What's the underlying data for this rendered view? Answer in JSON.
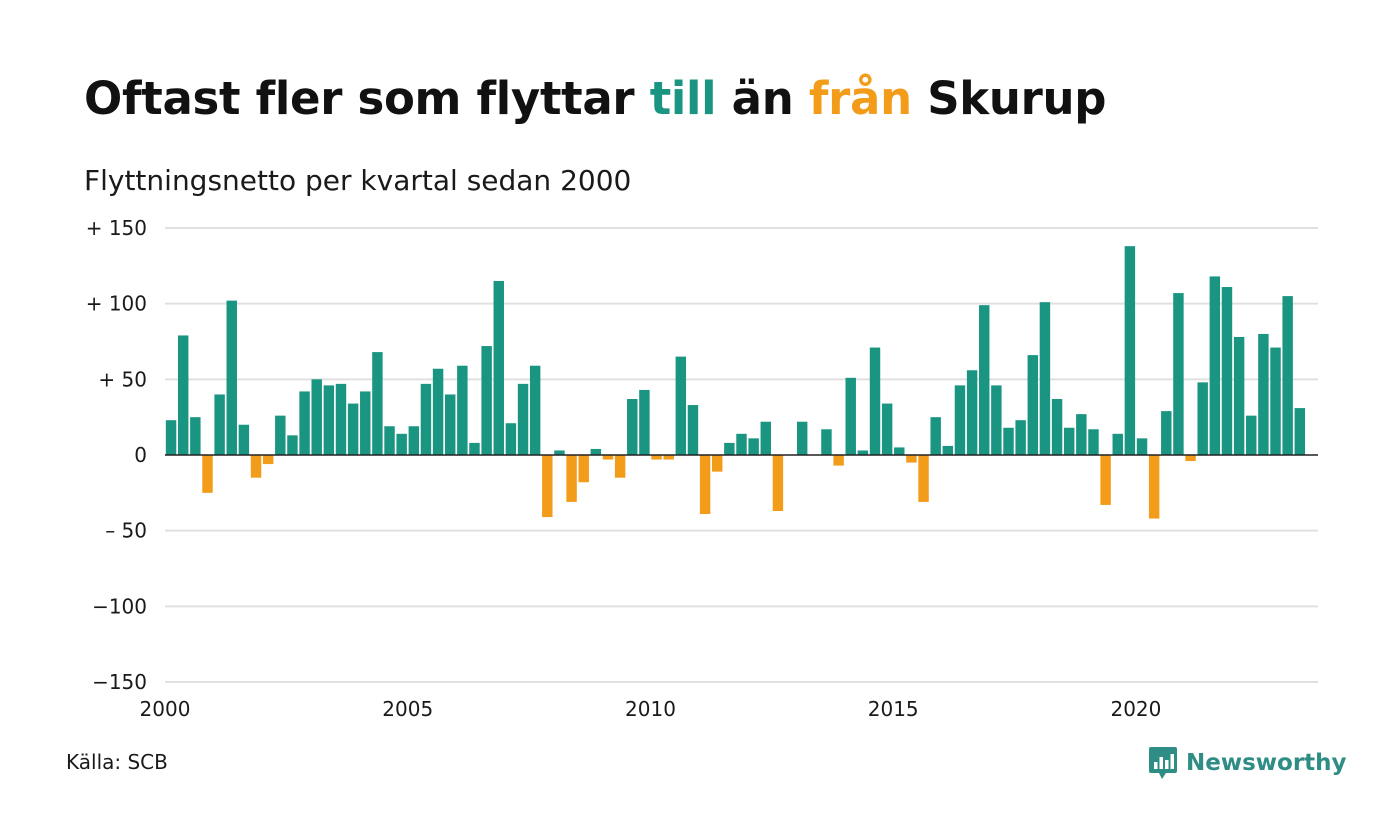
{
  "title": {
    "part1": "Oftast fler som flyttar ",
    "part2": "till",
    "part3": " än ",
    "part4": "från",
    "part5": " Skurup"
  },
  "subtitle": "Flyttningsnetto per kvartal sedan 2000",
  "source": "Källa: SCB",
  "brand": {
    "name": "Newsworthy",
    "icon": "newsworthy-chart-bubble-icon"
  },
  "colors": {
    "positive": "#1a9582",
    "negative": "#f39c1a",
    "grid": "#e0e0e0",
    "axis": "#222222",
    "brand": "#2e8d85"
  },
  "chart_data": {
    "type": "bar",
    "title": "Oftast fler som flyttar till än från Skurup",
    "subtitle": "Flyttningsnetto per kvartal sedan 2000",
    "xlabel": "",
    "ylabel": "",
    "x_start": 2000,
    "periods_per_year": 4,
    "xlim": [
      2000,
      2023.75
    ],
    "ylim": [
      -150,
      150
    ],
    "yticks": [
      150,
      100,
      50,
      0,
      -50,
      -100,
      -150
    ],
    "ytick_labels": [
      "+ 150",
      "+ 100",
      "+  50",
      "0",
      "– 50",
      "−100",
      "−150"
    ],
    "xticks": [
      2000,
      2005,
      2010,
      2015,
      2020
    ],
    "xtick_labels": [
      "2000",
      "2005",
      "2010",
      "2015",
      "2020"
    ],
    "grid": true,
    "legend": "none",
    "values": [
      23,
      79,
      25,
      -25,
      40,
      102,
      20,
      -15,
      -6,
      26,
      13,
      42,
      50,
      46,
      47,
      34,
      42,
      68,
      19,
      14,
      19,
      47,
      57,
      40,
      59,
      8,
      72,
      115,
      21,
      47,
      59,
      -41,
      3,
      -31,
      -18,
      4,
      -3,
      -15,
      37,
      43,
      -3,
      -3,
      65,
      33,
      -39,
      -11,
      8,
      14,
      11,
      22,
      -37,
      0,
      22,
      0,
      17,
      -7,
      51,
      3,
      71,
      34,
      5,
      -5,
      -31,
      25,
      6,
      46,
      56,
      99,
      46,
      18,
      23,
      66,
      101,
      37,
      18,
      27,
      17,
      -33,
      14,
      138,
      11,
      -42,
      29,
      107,
      -4,
      48,
      118,
      111,
      78,
      26,
      80,
      71,
      105,
      31
    ]
  }
}
